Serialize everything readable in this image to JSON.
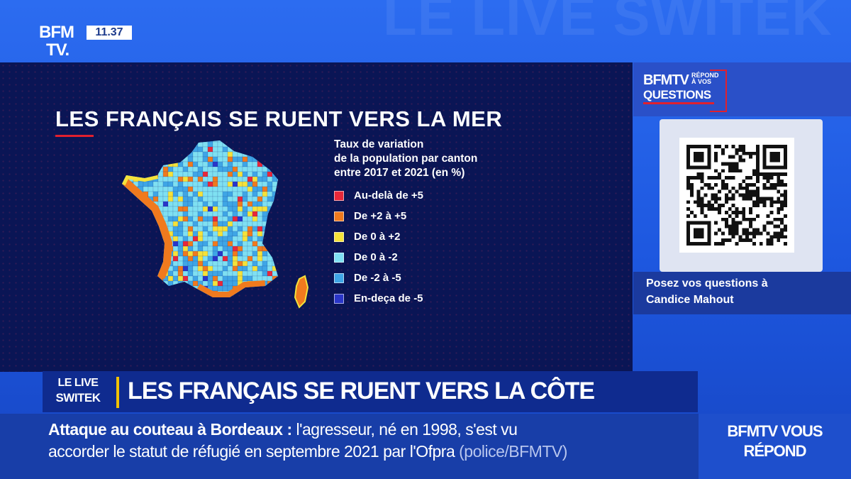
{
  "channel": {
    "logo_line1": "BFM",
    "logo_line2": "TV.",
    "clock": "11.37"
  },
  "background_watermark": {
    "text": "LE LIVE SWITEK LE LIVE SWITEK"
  },
  "panel": {
    "title": "LES FRANÇAIS SE RUENT VERS LA MER",
    "legend_title_lines": [
      "Taux de variation",
      "de la population par canton",
      "entre 2017 et 2021 (en %)"
    ],
    "legend": [
      {
        "label": "Au-delà de +5",
        "color": "#e8283a"
      },
      {
        "label": "De +2 à +5",
        "color": "#f07a1e"
      },
      {
        "label": "De 0 à +2",
        "color": "#f5e23a"
      },
      {
        "label": "De 0 à -2",
        "color": "#7fe0f2"
      },
      {
        "label": "De -2 à -5",
        "color": "#3fa6e6"
      },
      {
        "label": "En-deça de -5",
        "color": "#2a36c8"
      }
    ]
  },
  "sidebar": {
    "brand_line1": "BFMTV",
    "brand_line2": "RÉPOND À VOS",
    "brand_line3": "QUESTIONS",
    "ask_line1": "Posez vos questions à",
    "ask_line2": "Candice Mahout"
  },
  "headline": {
    "show_tag_line1": "LE LIVE",
    "show_tag_line2": "SWITEK",
    "text": "LES FRANÇAIS SE RUENT VERS LA CÔTE"
  },
  "ticker": {
    "topic": "Attaque au couteau à Bordeaux :",
    "line1_rest": " l'agresseur, né en 1998, s'est vu",
    "line2": "accorder le statut de réfugié en septembre 2021 par l'Ofpra",
    "source": "(police/BFMTV)"
  },
  "corner": {
    "line1": "BFMTV VOUS",
    "line2": "RÉPOND"
  }
}
